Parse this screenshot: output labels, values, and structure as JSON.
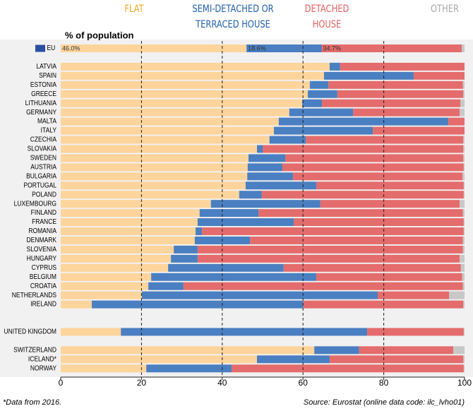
{
  "chart_data": {
    "type": "stacked-bar-horizontal",
    "axis_label": "% of population",
    "categories": [
      "EU",
      "LATVIA",
      "SPAIN",
      "ESTONIA",
      "GREECE",
      "LITHUANIA",
      "GERMANY",
      "MALTA",
      "ITALY",
      "CZECHIA",
      "SLOVAKIA",
      "SWEDEN",
      "AUSTRIA",
      "BULGARIA",
      "PORTUGAL",
      "POLAND",
      "LUXEMBOURG",
      "FINLAND",
      "FRANCE",
      "ROMANIA",
      "DENMARK",
      "SLOVENIA",
      "HUNGARY",
      "CYPRUS",
      "BELGIUM",
      "CROATIA",
      "NETHERLANDS",
      "IRELAND",
      "UNITED KINGDOM",
      "SWITZERLAND",
      "ICELAND*",
      "NORWAY"
    ],
    "series": [
      {
        "name": "FLAT",
        "color": "#fdd49b",
        "label_color": "#f5a623",
        "values": [
          46.0,
          66.6,
          65.2,
          61.7,
          61.2,
          59.8,
          56.6,
          54.0,
          52.8,
          51.7,
          48.6,
          46.5,
          46.3,
          46.2,
          45.8,
          44.2,
          37.2,
          34.4,
          33.9,
          33.4,
          33.2,
          28.0,
          27.3,
          26.6,
          22.4,
          21.7,
          20.1,
          7.7,
          14.9,
          62.8,
          48.6,
          21.2
        ],
        "value_labels": [
          "46.0%",
          null,
          null,
          null,
          null,
          null,
          null,
          null,
          null,
          null,
          null,
          null,
          null,
          null,
          null,
          null,
          null,
          null,
          null,
          null,
          null,
          null,
          null,
          null,
          null,
          null,
          null,
          null,
          null,
          null,
          null,
          null
        ]
      },
      {
        "name": "SEMI-DETACHED OR TERRACED HOUSE",
        "color": "#4a7fc1",
        "label_color": "#1f5fa8",
        "values": [
          18.6,
          2.6,
          22.2,
          4.6,
          7.3,
          4.9,
          15.8,
          42.0,
          24.5,
          9.0,
          1.4,
          9.1,
          8.6,
          11.3,
          17.5,
          5.6,
          27.1,
          14.6,
          23.8,
          1.6,
          13.7,
          5.9,
          6.6,
          28.6,
          40.9,
          8.7,
          58.4,
          52.4,
          61.0,
          11.1,
          18.0,
          21.1
        ],
        "value_labels": [
          "18.6%",
          null,
          null,
          null,
          null,
          null,
          null,
          null,
          null,
          null,
          null,
          null,
          null,
          null,
          null,
          null,
          null,
          null,
          null,
          null,
          null,
          null,
          null,
          null,
          null,
          null,
          null,
          null,
          null,
          null,
          null,
          null
        ]
      },
      {
        "name": "DETACHED HOUSE",
        "color": "#e46c6c",
        "label_color": "#e06060",
        "values": [
          34.7,
          30.8,
          12.6,
          33.3,
          31.2,
          34.3,
          26.4,
          4.0,
          22.7,
          39.0,
          49.7,
          44.1,
          44.9,
          42.0,
          36.5,
          50.0,
          34.5,
          50.6,
          42.1,
          64.8,
          52.7,
          65.7,
          64.9,
          43.9,
          36.1,
          69.2,
          17.7,
          39.6,
          23.9,
          23.3,
          33.1,
          57.5
        ],
        "value_labels": [
          "34.7%",
          null,
          null,
          null,
          null,
          null,
          null,
          null,
          null,
          null,
          null,
          null,
          null,
          null,
          null,
          null,
          null,
          null,
          null,
          null,
          null,
          null,
          null,
          null,
          null,
          null,
          null,
          null,
          null,
          null,
          null,
          null
        ]
      },
      {
        "name": "OTHER",
        "color": "#c8c8c8",
        "label_color": "#a8a8a8",
        "values": [
          0.7,
          0,
          0,
          0.4,
          0.3,
          1.0,
          1.2,
          0,
          0,
          0.3,
          0.3,
          0.3,
          0.2,
          0.5,
          0.2,
          0.2,
          1.2,
          0.4,
          0.2,
          0.2,
          0.4,
          0.4,
          1.2,
          0.9,
          0.6,
          0.4,
          3.8,
          0.3,
          0.2,
          2.8,
          0.3,
          0.2
        ]
      }
    ],
    "xlim": [
      0,
      100
    ],
    "xticks": [
      0,
      20,
      40,
      60,
      80,
      100
    ],
    "grid": true,
    "footnote": "*Data from 2016.",
    "source": "Source: Eurostat (online data code: ilc_lvho01)"
  }
}
